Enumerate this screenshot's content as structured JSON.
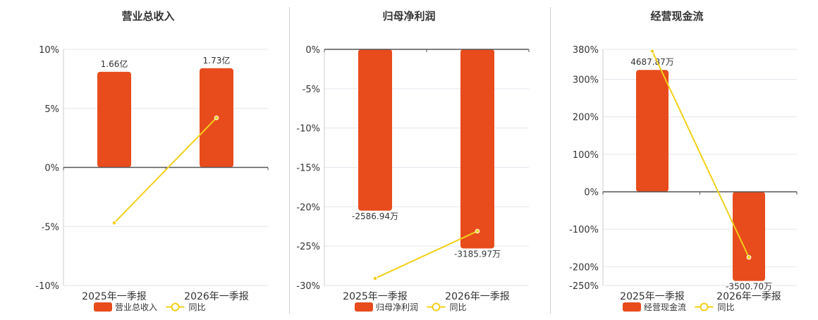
{
  "legend_line_label": "同比",
  "colors": {
    "bar": "#e84c1c",
    "line": "#f2d01a",
    "grid": "#e3e6ee",
    "axis": "#555555",
    "text": "#333333"
  },
  "chart_data": [
    {
      "type": "bar",
      "title": "营业总收入",
      "categories": [
        "2025年一季报",
        "2026年一季报"
      ],
      "series": [
        {
          "name": "营业总收入",
          "type": "bar",
          "axis": "none",
          "values": [
            1.66,
            1.73
          ],
          "labels": [
            "1.66亿",
            "1.73亿"
          ]
        },
        {
          "name": "同比",
          "type": "line",
          "axis": "left",
          "values": [
            -4.7,
            4.2
          ]
        }
      ],
      "y_ticks": [
        10,
        5,
        0,
        -5,
        -10
      ],
      "y_tick_labels": [
        "10%",
        "5%",
        "0%",
        "-5%",
        "-10%"
      ],
      "ylim": [
        -10,
        10
      ],
      "bar_values_display": [
        8.1,
        8.4
      ],
      "legend": "bottom"
    },
    {
      "type": "bar",
      "title": "归母净利润",
      "categories": [
        "2025年一季报",
        "2026年一季报"
      ],
      "series": [
        {
          "name": "归母净利润",
          "type": "bar",
          "axis": "none",
          "values": [
            -2586.94,
            -3185.97
          ],
          "labels": [
            "-2586.94万",
            "-3185.97万"
          ]
        },
        {
          "name": "同比",
          "type": "line",
          "axis": "left",
          "values": [
            -29.1,
            -23.1
          ]
        }
      ],
      "y_ticks": [
        0,
        -5,
        -10,
        -15,
        -20,
        -25,
        -30
      ],
      "y_tick_labels": [
        "0%",
        "-5%",
        "-10%",
        "-15%",
        "-20%",
        "-25%",
        "-30%"
      ],
      "ylim": [
        -30,
        0
      ],
      "bar_values_display": [
        -20.5,
        -25.3
      ],
      "legend": "bottom"
    },
    {
      "type": "bar",
      "title": "经营现金流",
      "categories": [
        "2025年一季报",
        "2026年一季报"
      ],
      "series": [
        {
          "name": "经营现金流",
          "type": "bar",
          "axis": "none",
          "values": [
            4687.87,
            -3500.7
          ],
          "labels": [
            "4687.87万",
            "-3500.70万"
          ]
        },
        {
          "name": "同比",
          "type": "line",
          "axis": "left",
          "values": [
            375,
            -175
          ]
        }
      ],
      "y_ticks": [
        380,
        300,
        200,
        100,
        0,
        -100,
        -200,
        -250
      ],
      "y_tick_labels": [
        "380%",
        "300%",
        "200%",
        "100%",
        "0%",
        "-100%",
        "-200%",
        "-250%"
      ],
      "ylim": [
        -250,
        380
      ],
      "bar_values_display": [
        325,
        -238
      ],
      "legend": "bottom"
    }
  ]
}
